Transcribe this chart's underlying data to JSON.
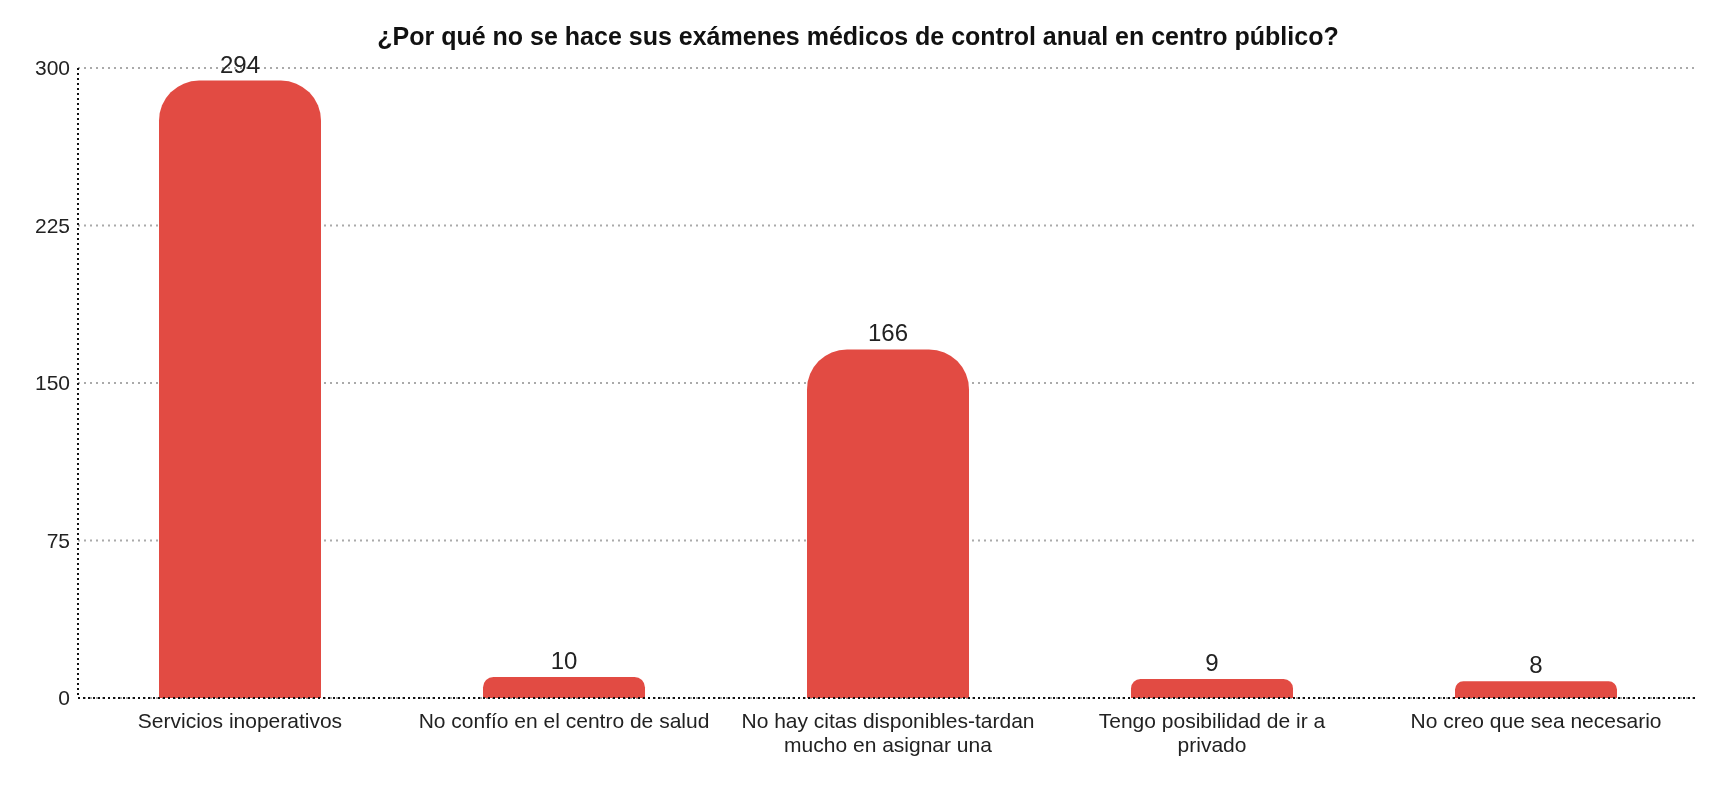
{
  "chart_data": {
    "type": "bar",
    "title": "¿Por qué no se hace sus exámenes médicos de control anual en centro público?",
    "categories": [
      "Servicios inoperativos",
      "No confío en el centro de salud",
      "No hay citas disponibles-tardan mucho en asignar una",
      "Tengo posibilidad de ir a privado",
      "No creo que sea necesario"
    ],
    "values": [
      294,
      10,
      166,
      9,
      8
    ],
    "color": "#e24b43",
    "ylim": [
      0,
      300
    ],
    "yticks": [
      0,
      75,
      150,
      225,
      300
    ],
    "grid": "y",
    "data_labels": true
  }
}
